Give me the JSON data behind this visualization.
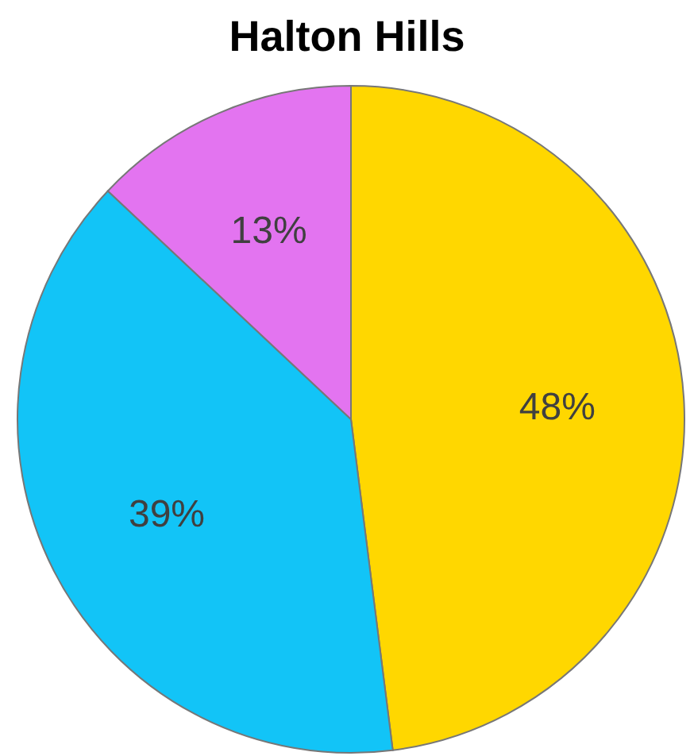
{
  "chart_data": {
    "type": "pie",
    "title": "Halton Hills",
    "categories": [
      null,
      null,
      null
    ],
    "values": [
      48,
      39,
      13
    ],
    "colors": [
      "#ffd700",
      "#12c4f7",
      "#e374f0"
    ],
    "value_labels": [
      "48%",
      "39%",
      "13%"
    ]
  }
}
